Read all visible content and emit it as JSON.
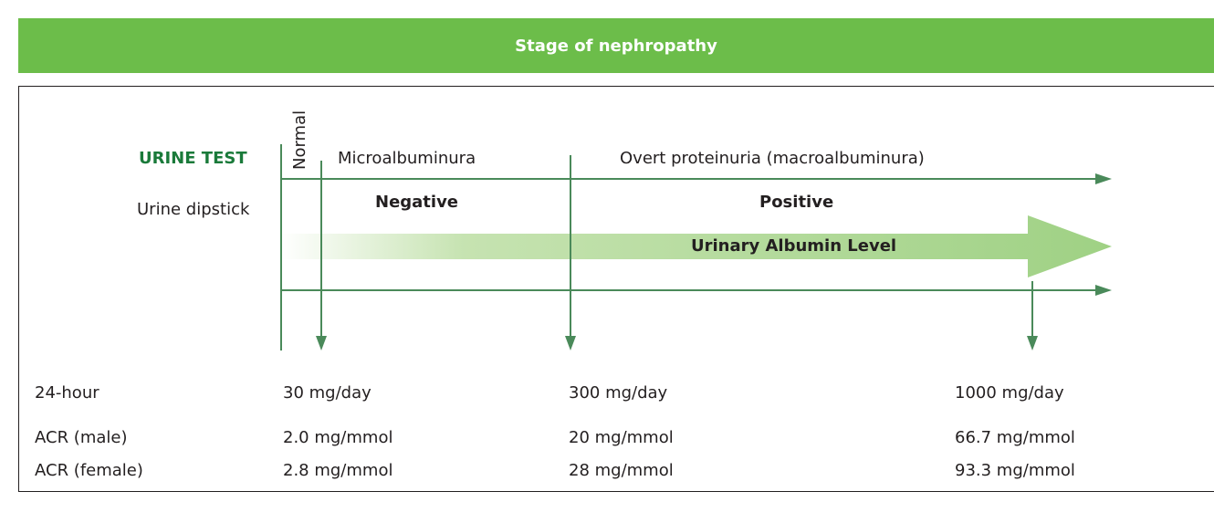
{
  "header": {
    "title": "Stage of nephropathy"
  },
  "diagram": {
    "urine_test_label": "URINE TEST",
    "dipstick_label": "Urine dipstick",
    "normal_label": "Normal",
    "micro_label": "Microalbuminura",
    "overt_label": "Overt proteinuria (macroalbuminura)",
    "negative_label": "Negative",
    "positive_label": "Positive",
    "albumin_label": "Urinary Albumin Level",
    "colors": {
      "dark_green": "#1a7a3a",
      "line_green": "#4a8a5a",
      "header_green": "#6cbd4a",
      "arrow_green": "#a8d68c"
    }
  },
  "table": {
    "rows": [
      {
        "label": "24-hour",
        "values": [
          "30 mg/day",
          "300 mg/day",
          "1000 mg/day"
        ]
      },
      {
        "label": "ACR (male)",
        "values": [
          "2.0 mg/mmol",
          "20 mg/mmol",
          "66.7 mg/mmol"
        ]
      },
      {
        "label": "ACR (female)",
        "values": [
          "2.8 mg/mmol",
          "28 mg/mmol",
          "93.3 mg/mmol"
        ]
      }
    ]
  }
}
